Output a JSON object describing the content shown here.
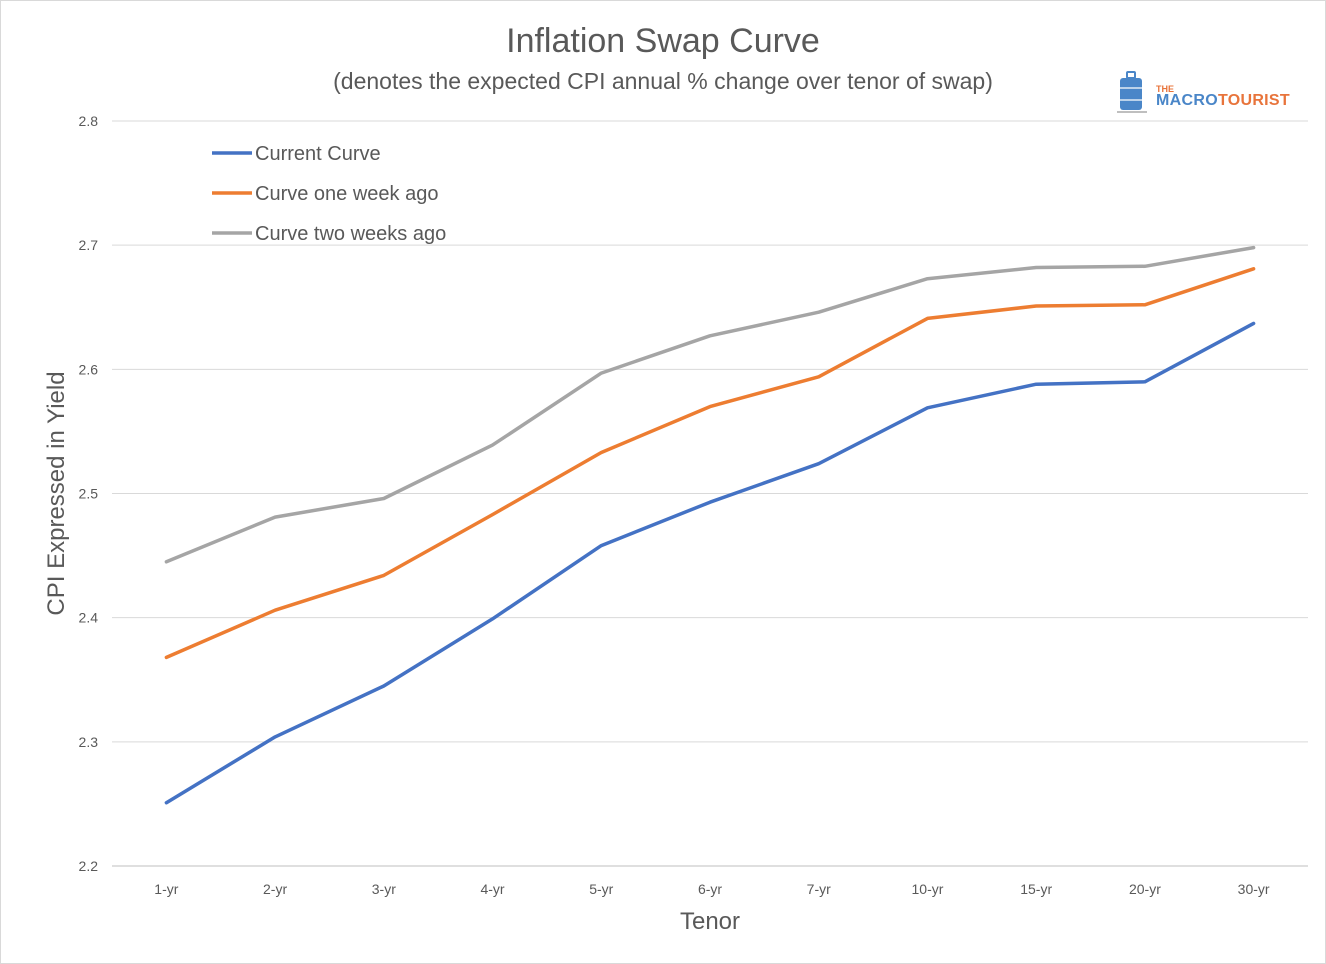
{
  "chart_data": {
    "type": "line",
    "title": "Inflation Swap Curve",
    "subtitle": "(denotes the expected CPI annual % change over tenor of swap)",
    "xlabel": "Tenor",
    "ylabel": "CPI Expressed in Yield",
    "categories": [
      "1-yr",
      "2-yr",
      "3-yr",
      "4-yr",
      "5-yr",
      "6-yr",
      "7-yr",
      "10-yr",
      "15-yr",
      "20-yr",
      "30-yr"
    ],
    "ylim": [
      2.2,
      2.8
    ],
    "yticks": [
      "2.2",
      "2.3",
      "2.4",
      "2.5",
      "2.6",
      "2.7",
      "2.8"
    ],
    "grid": true,
    "legend_position": "top-left",
    "series": [
      {
        "name": "Current Curve",
        "color": "#4472c4",
        "values": [
          2.251,
          2.304,
          2.345,
          2.399,
          2.458,
          2.493,
          2.524,
          2.569,
          2.588,
          2.59,
          2.637
        ]
      },
      {
        "name": "Curve one week ago",
        "color": "#ed7d31",
        "values": [
          2.368,
          2.406,
          2.434,
          2.483,
          2.533,
          2.57,
          2.594,
          2.641,
          2.651,
          2.652,
          2.681
        ]
      },
      {
        "name": "Curve two weeks ago",
        "color": "#a5a5a5",
        "values": [
          2.445,
          2.481,
          2.496,
          2.539,
          2.597,
          2.627,
          2.646,
          2.673,
          2.682,
          2.683,
          2.698
        ]
      }
    ]
  },
  "logo": {
    "the": "THE",
    "macro": "MACRO",
    "tourist": "TOURIST",
    "color_blue": "#4a86c8",
    "color_orange": "#e8743b",
    "icon": "suitcase-icon"
  }
}
